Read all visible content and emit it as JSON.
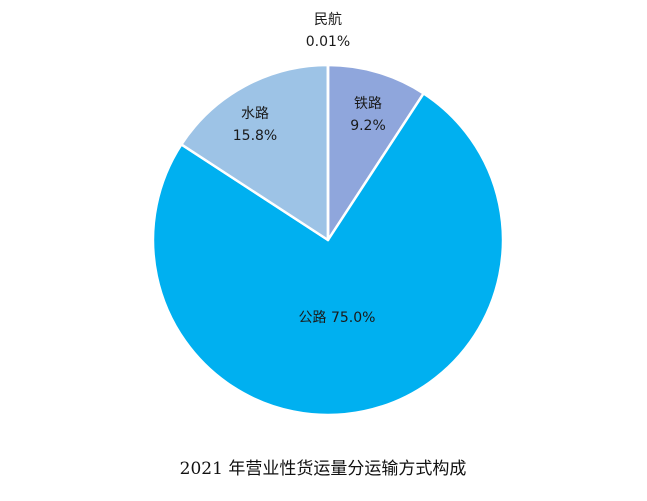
{
  "chart_data": {
    "type": "pie",
    "title": "2021 年营业性货运量分运输方式构成",
    "start_angle_deg": 0,
    "direction": "clockwise",
    "slices": [
      {
        "name": "铁路",
        "value": 9.2,
        "value_label": "9.2%",
        "color": "#8fa6dc"
      },
      {
        "name": "公路",
        "value": 75.0,
        "value_label": "75.0%",
        "color": "#00b0f0"
      },
      {
        "name": "水路",
        "value": 15.8,
        "value_label": "15.8%",
        "color": "#9dc3e6"
      },
      {
        "name": "民航",
        "value": 0.01,
        "value_label": "0.01%",
        "color": "#7f7f7f"
      }
    ],
    "slice_border_color": "#ffffff",
    "legend": "none",
    "grid": false
  }
}
